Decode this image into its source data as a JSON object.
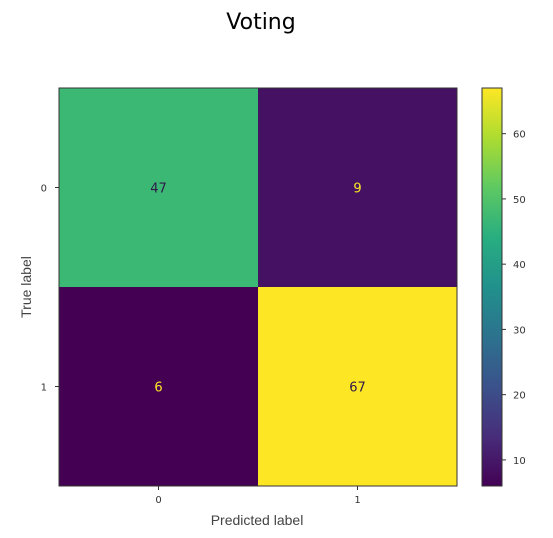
{
  "chart_data": {
    "type": "heatmap",
    "title": "Voting",
    "xlabel": "Predicted label",
    "ylabel": "True label",
    "x_categories": [
      "0",
      "1"
    ],
    "y_categories": [
      "0",
      "1"
    ],
    "matrix": [
      [
        47,
        9
      ],
      [
        6,
        67
      ]
    ],
    "colormap": "viridis",
    "colorbar": {
      "range": [
        6,
        67
      ],
      "ticks": [
        "10",
        "20",
        "30",
        "40",
        "50",
        "60"
      ]
    },
    "grid": false
  },
  "colors": {
    "high": "#fde725",
    "low": "#440154",
    "light_text": "#fde725",
    "dark_text": "#2f1848"
  }
}
